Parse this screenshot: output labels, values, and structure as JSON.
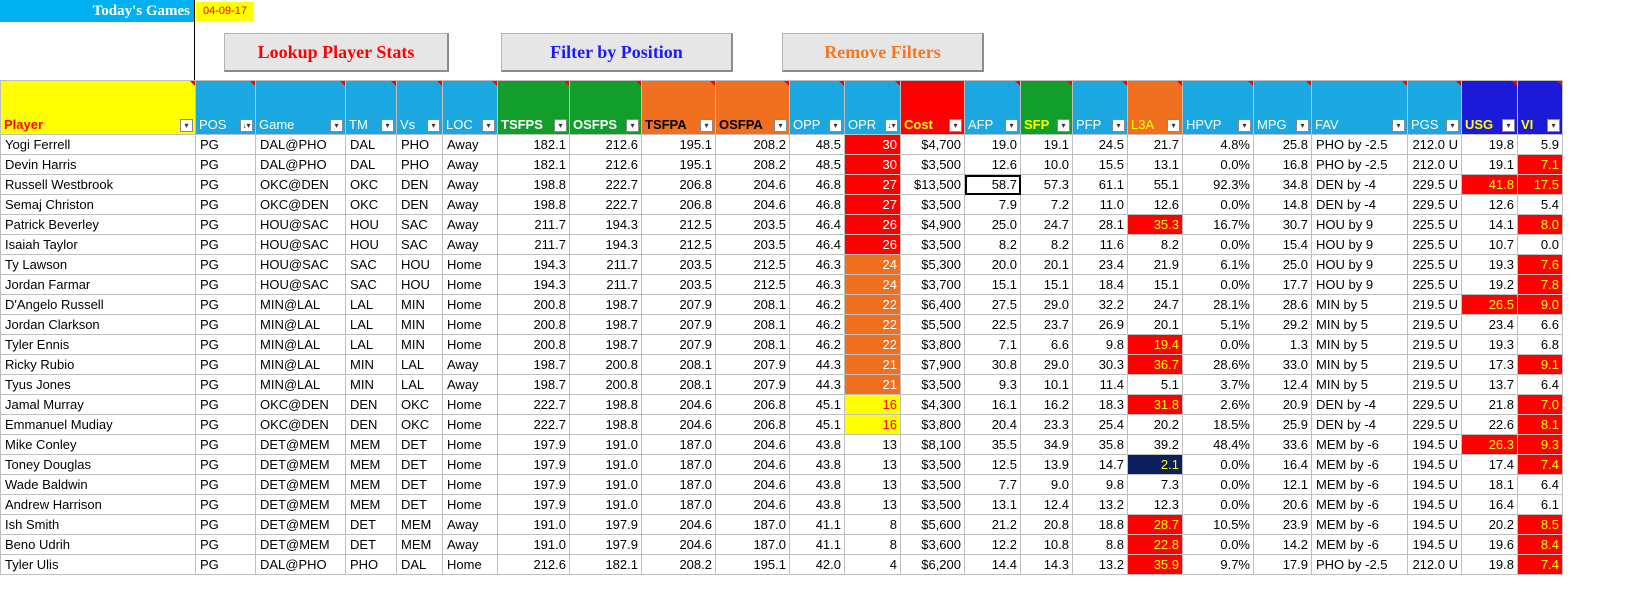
{
  "header": {
    "todays_games": "Today's Games",
    "date": "04-09-17"
  },
  "buttons": {
    "lookup": "Lookup Player Stats",
    "filter": "Filter by Position",
    "remove": "Remove Filters"
  },
  "columns": [
    {
      "label": "Player",
      "bg": "#ffff00",
      "color": "#ff0000",
      "bold": true,
      "align": "l",
      "width": 195
    },
    {
      "label": "POS",
      "bg": "#1ba8e0",
      "color": "#ffffff",
      "bold": false,
      "align": "l",
      "width": 60,
      "sorted": true
    },
    {
      "label": "Game",
      "bg": "#1ba8e0",
      "color": "#ffffff",
      "bold": false,
      "align": "l",
      "width": 90
    },
    {
      "label": "TM",
      "bg": "#1ba8e0",
      "color": "#ffffff",
      "bold": false,
      "align": "l",
      "width": 51
    },
    {
      "label": "Vs",
      "bg": "#1ba8e0",
      "color": "#ffffff",
      "bold": false,
      "align": "l",
      "width": 46
    },
    {
      "label": "LOC",
      "bg": "#1ba8e0",
      "color": "#ffffff",
      "bold": false,
      "align": "l",
      "width": 55
    },
    {
      "label": "TSFPS",
      "bg": "#119e2b",
      "color": "#ffffff",
      "bold": true,
      "align": "r",
      "width": 72
    },
    {
      "label": "OSFPS",
      "bg": "#119e2b",
      "color": "#ffffff",
      "bold": true,
      "align": "r",
      "width": 72
    },
    {
      "label": "TSFPA",
      "bg": "#f07020",
      "color": "#000000",
      "bold": true,
      "align": "r",
      "width": 74
    },
    {
      "label": "OSFPA",
      "bg": "#f07020",
      "color": "#000000",
      "bold": true,
      "align": "r",
      "width": 74
    },
    {
      "label": "OPP",
      "bg": "#1ba8e0",
      "color": "#ffffff",
      "bold": false,
      "align": "r",
      "width": 55
    },
    {
      "label": "OPR",
      "bg": "#1ba8e0",
      "color": "#ffffff",
      "bold": false,
      "align": "r",
      "width": 56,
      "sorted": true
    },
    {
      "label": "Cost",
      "bg": "#ff0000",
      "color": "#ffff00",
      "bold": true,
      "align": "r",
      "width": 64
    },
    {
      "label": "AFP",
      "bg": "#1ba8e0",
      "color": "#ffffff",
      "bold": false,
      "align": "r",
      "width": 56
    },
    {
      "label": "SFP",
      "bg": "#119e2b",
      "color": "#ffff00",
      "bold": true,
      "align": "r",
      "width": 52
    },
    {
      "label": "PFP",
      "bg": "#1ba8e0",
      "color": "#ffffff",
      "bold": false,
      "align": "r",
      "width": 55
    },
    {
      "label": "L3A",
      "bg": "#f07020",
      "color": "#ffff00",
      "bold": false,
      "align": "r",
      "width": 55
    },
    {
      "label": "HPVP",
      "bg": "#1ba8e0",
      "color": "#ffffff",
      "bold": false,
      "align": "r",
      "width": 71
    },
    {
      "label": "MPG",
      "bg": "#1ba8e0",
      "color": "#ffffff",
      "bold": false,
      "align": "r",
      "width": 58
    },
    {
      "label": "FAV",
      "bg": "#1ba8e0",
      "color": "#ffffff",
      "bold": false,
      "align": "l",
      "width": 96
    },
    {
      "label": "PGS",
      "bg": "#1ba8e0",
      "color": "#ffffff",
      "bold": false,
      "align": "r",
      "width": 54
    },
    {
      "label": "USG",
      "bg": "#1a1ad8",
      "color": "#ffff00",
      "bold": true,
      "align": "r",
      "width": 56
    },
    {
      "label": "VI",
      "bg": "#1a1ad8",
      "color": "#ffff00",
      "bold": true,
      "align": "r",
      "width": 45
    }
  ],
  "rows": [
    [
      "Yogi Ferrell",
      "PG",
      "DAL@PHO",
      "DAL",
      "PHO",
      "Away",
      "182.1",
      "212.6",
      "195.1",
      "208.2",
      "48.5",
      "30",
      "$4,700",
      "19.0",
      "19.1",
      "24.5",
      "21.7",
      "4.8%",
      "25.8",
      "PHO by -2.5",
      "212.0 U",
      "19.8",
      "5.9"
    ],
    [
      "Devin Harris",
      "PG",
      "DAL@PHO",
      "DAL",
      "PHO",
      "Away",
      "182.1",
      "212.6",
      "195.1",
      "208.2",
      "48.5",
      "30",
      "$3,500",
      "12.6",
      "10.0",
      "15.5",
      "13.1",
      "0.0%",
      "16.8",
      "PHO by -2.5",
      "212.0 U",
      "19.1",
      "7.1"
    ],
    [
      "Russell Westbrook",
      "PG",
      "OKC@DEN",
      "OKC",
      "DEN",
      "Away",
      "198.8",
      "222.7",
      "206.8",
      "204.6",
      "46.8",
      "27",
      "$13,500",
      "58.7",
      "57.3",
      "61.1",
      "55.1",
      "92.3%",
      "34.8",
      "DEN by -4",
      "229.5 U",
      "41.8",
      "17.5"
    ],
    [
      "Semaj Christon",
      "PG",
      "OKC@DEN",
      "OKC",
      "DEN",
      "Away",
      "198.8",
      "222.7",
      "206.8",
      "204.6",
      "46.8",
      "27",
      "$3,500",
      "7.9",
      "7.2",
      "11.0",
      "12.6",
      "0.0%",
      "14.8",
      "DEN by -4",
      "229.5 U",
      "12.6",
      "5.4"
    ],
    [
      "Patrick Beverley",
      "PG",
      "HOU@SAC",
      "HOU",
      "SAC",
      "Away",
      "211.7",
      "194.3",
      "212.5",
      "203.5",
      "46.4",
      "26",
      "$4,900",
      "25.0",
      "24.7",
      "28.1",
      "35.3",
      "16.7%",
      "30.7",
      "HOU by 9",
      "225.5 U",
      "14.1",
      "8.0"
    ],
    [
      "Isaiah Taylor",
      "PG",
      "HOU@SAC",
      "HOU",
      "SAC",
      "Away",
      "211.7",
      "194.3",
      "212.5",
      "203.5",
      "46.4",
      "26",
      "$3,500",
      "8.2",
      "8.2",
      "11.6",
      "8.2",
      "0.0%",
      "15.4",
      "HOU by 9",
      "225.5 U",
      "10.7",
      "0.0"
    ],
    [
      "Ty Lawson",
      "PG",
      "HOU@SAC",
      "SAC",
      "HOU",
      "Home",
      "194.3",
      "211.7",
      "203.5",
      "212.5",
      "46.3",
      "24",
      "$5,300",
      "20.0",
      "20.1",
      "23.4",
      "21.9",
      "6.1%",
      "25.0",
      "HOU by 9",
      "225.5 U",
      "19.3",
      "7.6"
    ],
    [
      "Jordan Farmar",
      "PG",
      "HOU@SAC",
      "SAC",
      "HOU",
      "Home",
      "194.3",
      "211.7",
      "203.5",
      "212.5",
      "46.3",
      "24",
      "$3,700",
      "15.1",
      "15.1",
      "18.4",
      "15.1",
      "0.0%",
      "17.7",
      "HOU by 9",
      "225.5 U",
      "19.2",
      "7.8"
    ],
    [
      "D'Angelo Russell",
      "PG",
      "MIN@LAL",
      "LAL",
      "MIN",
      "Home",
      "200.8",
      "198.7",
      "207.9",
      "208.1",
      "46.2",
      "22",
      "$6,400",
      "27.5",
      "29.0",
      "32.2",
      "24.7",
      "28.1%",
      "28.6",
      "MIN by 5",
      "219.5 U",
      "26.5",
      "9.0"
    ],
    [
      "Jordan Clarkson",
      "PG",
      "MIN@LAL",
      "LAL",
      "MIN",
      "Home",
      "200.8",
      "198.7",
      "207.9",
      "208.1",
      "46.2",
      "22",
      "$5,500",
      "22.5",
      "23.7",
      "26.9",
      "20.1",
      "5.1%",
      "29.2",
      "MIN by 5",
      "219.5 U",
      "23.4",
      "6.6"
    ],
    [
      "Tyler Ennis",
      "PG",
      "MIN@LAL",
      "LAL",
      "MIN",
      "Home",
      "200.8",
      "198.7",
      "207.9",
      "208.1",
      "46.2",
      "22",
      "$3,800",
      "7.1",
      "6.6",
      "9.8",
      "19.4",
      "0.0%",
      "1.3",
      "MIN by 5",
      "219.5 U",
      "19.3",
      "6.8"
    ],
    [
      "Ricky Rubio",
      "PG",
      "MIN@LAL",
      "MIN",
      "LAL",
      "Away",
      "198.7",
      "200.8",
      "208.1",
      "207.9",
      "44.3",
      "21",
      "$7,900",
      "30.8",
      "29.0",
      "30.3",
      "36.7",
      "28.6%",
      "33.0",
      "MIN by 5",
      "219.5 U",
      "17.3",
      "9.1"
    ],
    [
      "Tyus Jones",
      "PG",
      "MIN@LAL",
      "MIN",
      "LAL",
      "Away",
      "198.7",
      "200.8",
      "208.1",
      "207.9",
      "44.3",
      "21",
      "$3,500",
      "9.3",
      "10.1",
      "11.4",
      "5.1",
      "3.7%",
      "12.4",
      "MIN by 5",
      "219.5 U",
      "13.7",
      "6.4"
    ],
    [
      "Jamal Murray",
      "PG",
      "OKC@DEN",
      "DEN",
      "OKC",
      "Home",
      "222.7",
      "198.8",
      "204.6",
      "206.8",
      "45.1",
      "16",
      "$4,300",
      "16.1",
      "16.2",
      "18.3",
      "31.8",
      "2.6%",
      "20.9",
      "DEN by -4",
      "229.5 U",
      "21.8",
      "7.0"
    ],
    [
      "Emmanuel Mudiay",
      "PG",
      "OKC@DEN",
      "DEN",
      "OKC",
      "Home",
      "222.7",
      "198.8",
      "204.6",
      "206.8",
      "45.1",
      "16",
      "$3,800",
      "20.4",
      "23.3",
      "25.4",
      "20.2",
      "18.5%",
      "25.9",
      "DEN by -4",
      "229.5 U",
      "22.6",
      "8.1"
    ],
    [
      "Mike Conley",
      "PG",
      "DET@MEM",
      "MEM",
      "DET",
      "Home",
      "197.9",
      "191.0",
      "187.0",
      "204.6",
      "43.8",
      "13",
      "$8,100",
      "35.5",
      "34.9",
      "35.8",
      "39.2",
      "48.4%",
      "33.6",
      "MEM by -6",
      "194.5 U",
      "26.3",
      "9.3"
    ],
    [
      "Toney Douglas",
      "PG",
      "DET@MEM",
      "MEM",
      "DET",
      "Home",
      "197.9",
      "191.0",
      "187.0",
      "204.6",
      "43.8",
      "13",
      "$3,500",
      "12.5",
      "13.9",
      "14.7",
      "2.1",
      "0.0%",
      "16.4",
      "MEM by -6",
      "194.5 U",
      "17.4",
      "7.4"
    ],
    [
      "Wade Baldwin",
      "PG",
      "DET@MEM",
      "MEM",
      "DET",
      "Home",
      "197.9",
      "191.0",
      "187.0",
      "204.6",
      "43.8",
      "13",
      "$3,500",
      "7.7",
      "9.0",
      "9.8",
      "7.3",
      "0.0%",
      "12.1",
      "MEM by -6",
      "194.5 U",
      "18.1",
      "6.4"
    ],
    [
      "Andrew Harrison",
      "PG",
      "DET@MEM",
      "MEM",
      "DET",
      "Home",
      "197.9",
      "191.0",
      "187.0",
      "204.6",
      "43.8",
      "13",
      "$3,500",
      "13.1",
      "12.4",
      "13.2",
      "12.3",
      "0.0%",
      "20.6",
      "MEM by -6",
      "194.5 U",
      "16.4",
      "6.1"
    ],
    [
      "Ish Smith",
      "PG",
      "DET@MEM",
      "DET",
      "MEM",
      "Away",
      "191.0",
      "197.9",
      "204.6",
      "187.0",
      "41.1",
      "8",
      "$5,600",
      "21.2",
      "20.8",
      "18.8",
      "28.7",
      "10.5%",
      "23.9",
      "MEM by -6",
      "194.5 U",
      "20.2",
      "8.5"
    ],
    [
      "Beno Udrih",
      "PG",
      "DET@MEM",
      "DET",
      "MEM",
      "Away",
      "191.0",
      "197.9",
      "204.6",
      "187.0",
      "41.1",
      "8",
      "$3,600",
      "12.2",
      "10.8",
      "8.8",
      "22.8",
      "0.0%",
      "14.2",
      "MEM by -6",
      "194.5 U",
      "19.6",
      "8.4"
    ],
    [
      "Tyler Ulis",
      "PG",
      "DAL@PHO",
      "PHO",
      "DAL",
      "Home",
      "212.6",
      "182.1",
      "208.2",
      "195.1",
      "42.0",
      "4",
      "$6,200",
      "14.4",
      "14.3",
      "13.2",
      "35.9",
      "9.7%",
      "17.9",
      "PHO by -2.5",
      "212.0 U",
      "19.8",
      "7.4"
    ]
  ],
  "highlights": [
    {
      "r": 0,
      "c": 11,
      "bg": "#ff0000",
      "color": "#ffffff"
    },
    {
      "r": 1,
      "c": 11,
      "bg": "#ff0000",
      "color": "#ffffff"
    },
    {
      "r": 2,
      "c": 11,
      "bg": "#ff0000",
      "color": "#ffffff"
    },
    {
      "r": 3,
      "c": 11,
      "bg": "#ff0000",
      "color": "#ffffff"
    },
    {
      "r": 4,
      "c": 11,
      "bg": "#ff0000",
      "color": "#ffffff"
    },
    {
      "r": 5,
      "c": 11,
      "bg": "#ff0000",
      "color": "#ffffff"
    },
    {
      "r": 6,
      "c": 11,
      "bg": "#f07020",
      "color": "#ffffff"
    },
    {
      "r": 7,
      "c": 11,
      "bg": "#f07020",
      "color": "#ffffff"
    },
    {
      "r": 8,
      "c": 11,
      "bg": "#f07020",
      "color": "#ffffff"
    },
    {
      "r": 9,
      "c": 11,
      "bg": "#f07020",
      "color": "#ffffff"
    },
    {
      "r": 10,
      "c": 11,
      "bg": "#f07020",
      "color": "#ffffff"
    },
    {
      "r": 11,
      "c": 11,
      "bg": "#f07020",
      "color": "#ffffff"
    },
    {
      "r": 12,
      "c": 11,
      "bg": "#f07020",
      "color": "#ffffff"
    },
    {
      "r": 13,
      "c": 11,
      "bg": "#ffff00",
      "color": "#ff0000"
    },
    {
      "r": 14,
      "c": 11,
      "bg": "#ffff00",
      "color": "#ff0000"
    },
    {
      "r": 4,
      "c": 16,
      "bg": "#ff0000",
      "color": "#ffff00"
    },
    {
      "r": 10,
      "c": 16,
      "bg": "#ff0000",
      "color": "#ffff00"
    },
    {
      "r": 11,
      "c": 16,
      "bg": "#ff0000",
      "color": "#ffff00"
    },
    {
      "r": 13,
      "c": 16,
      "bg": "#ff0000",
      "color": "#ffff00"
    },
    {
      "r": 16,
      "c": 16,
      "bg": "#0a1f5c",
      "color": "#ffff00"
    },
    {
      "r": 19,
      "c": 16,
      "bg": "#ff0000",
      "color": "#ffff00"
    },
    {
      "r": 20,
      "c": 16,
      "bg": "#ff0000",
      "color": "#ffff00"
    },
    {
      "r": 21,
      "c": 16,
      "bg": "#ff0000",
      "color": "#ffff00"
    },
    {
      "r": 2,
      "c": 21,
      "bg": "#ff0000",
      "color": "#ffff00"
    },
    {
      "r": 8,
      "c": 21,
      "bg": "#ff0000",
      "color": "#ffff00"
    },
    {
      "r": 15,
      "c": 21,
      "bg": "#ff0000",
      "color": "#ffff00"
    },
    {
      "r": 1,
      "c": 22,
      "bg": "#ff0000",
      "color": "#ffff00"
    },
    {
      "r": 2,
      "c": 22,
      "bg": "#ff0000",
      "color": "#ffff00"
    },
    {
      "r": 4,
      "c": 22,
      "bg": "#ff0000",
      "color": "#ffff00"
    },
    {
      "r": 6,
      "c": 22,
      "bg": "#ff0000",
      "color": "#ffff00"
    },
    {
      "r": 7,
      "c": 22,
      "bg": "#ff0000",
      "color": "#ffff00"
    },
    {
      "r": 8,
      "c": 22,
      "bg": "#ff0000",
      "color": "#ffff00"
    },
    {
      "r": 11,
      "c": 22,
      "bg": "#ff0000",
      "color": "#ffff00"
    },
    {
      "r": 13,
      "c": 22,
      "bg": "#ff0000",
      "color": "#ffff00"
    },
    {
      "r": 14,
      "c": 22,
      "bg": "#ff0000",
      "color": "#ffff00"
    },
    {
      "r": 15,
      "c": 22,
      "bg": "#ff0000",
      "color": "#ffff00"
    },
    {
      "r": 16,
      "c": 22,
      "bg": "#ff0000",
      "color": "#ffff00"
    },
    {
      "r": 19,
      "c": 22,
      "bg": "#ff0000",
      "color": "#ffff00"
    },
    {
      "r": 20,
      "c": 22,
      "bg": "#ff0000",
      "color": "#ffff00"
    },
    {
      "r": 21,
      "c": 22,
      "bg": "#ff0000",
      "color": "#ffff00"
    }
  ],
  "selected_cell": {
    "r": 2,
    "c": 13
  }
}
